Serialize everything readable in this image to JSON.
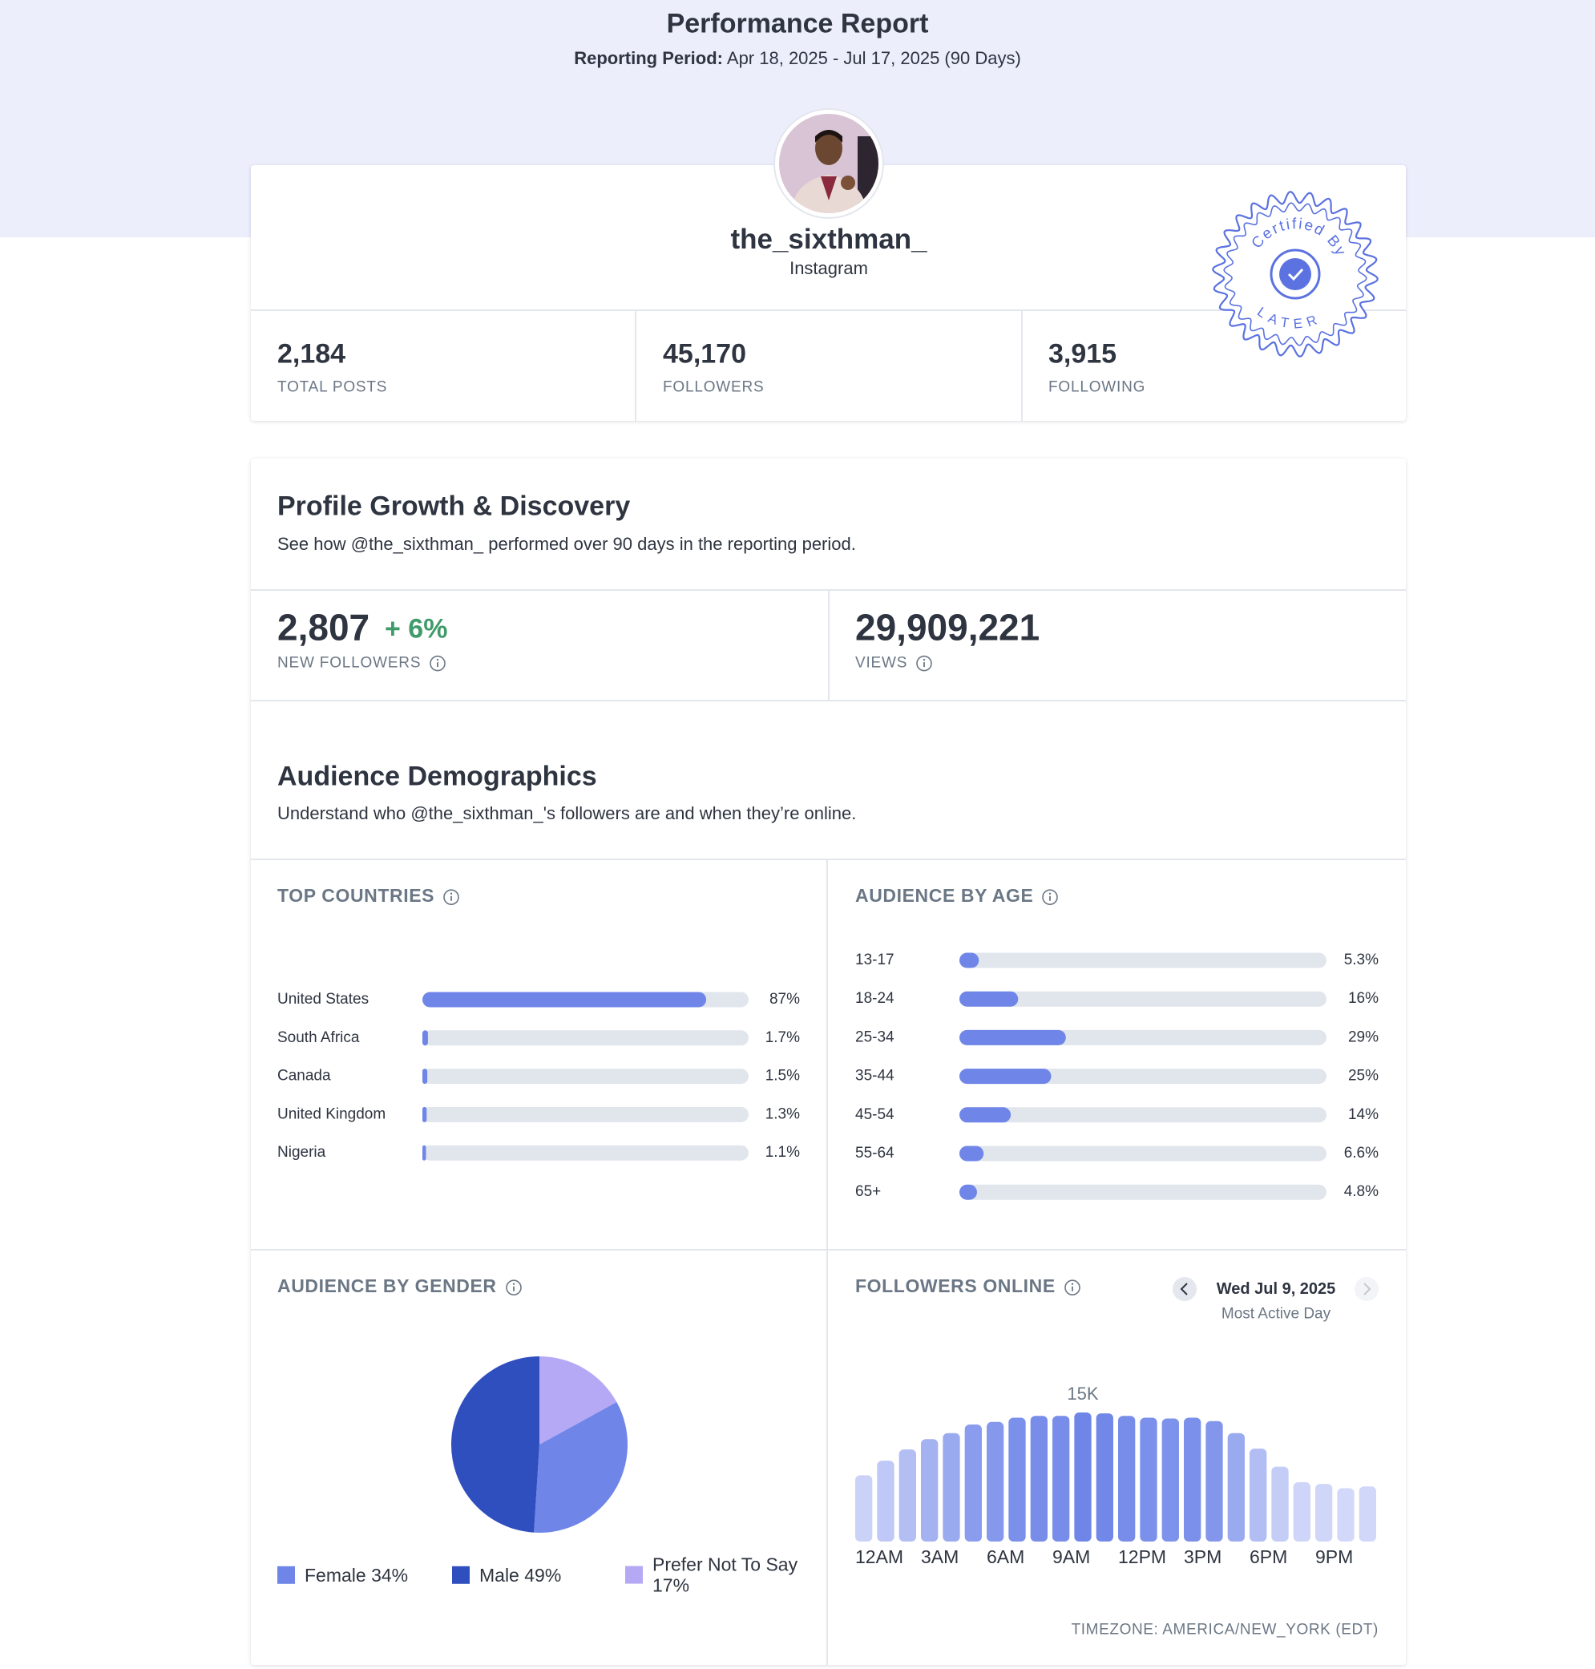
{
  "header": {
    "title": "Performance Report",
    "period_label": "Reporting Period:",
    "period": "Apr 18, 2025 - Jul 17, 2025 (90 Days)"
  },
  "profile": {
    "username": "the_sixthman_",
    "platform": "Instagram",
    "badge": {
      "top": "Certified By",
      "bottom": "LATER"
    }
  },
  "stats": [
    {
      "value": "2,184",
      "label": "TOTAL POSTS"
    },
    {
      "value": "45,170",
      "label": "FOLLOWERS"
    },
    {
      "value": "3,915",
      "label": "FOLLOWING"
    }
  ],
  "growth": {
    "title": "Profile Growth & Discovery",
    "subtitle": "See how @the_sixthman_ performed over 90 days in the reporting period.",
    "metrics": [
      {
        "value": "2,807",
        "change": "+ 6%",
        "label": "NEW FOLLOWERS"
      },
      {
        "value": "29,909,221",
        "label": "VIEWS"
      }
    ]
  },
  "demographics": {
    "title": "Audience Demographics",
    "subtitle": "Understand who @the_sixthman_'s followers are and when they’re online.",
    "countries": {
      "type": "bar",
      "title": "TOP COUNTRIES",
      "categories": [
        "United States",
        "South Africa",
        "Canada",
        "United Kingdom",
        "Nigeria"
      ],
      "values": [
        87,
        1.7,
        1.5,
        1.3,
        1.1
      ],
      "value_labels": [
        "87%",
        "1.7%",
        "1.5%",
        "1.3%",
        "1.1%"
      ],
      "xlim": [
        0,
        100
      ],
      "color": "#6f86e8",
      "track_color": "#e1e5ec"
    },
    "age": {
      "type": "bar",
      "title": "AUDIENCE BY AGE",
      "categories": [
        "13-17",
        "18-24",
        "25-34",
        "35-44",
        "45-54",
        "55-64",
        "65+"
      ],
      "values": [
        5.3,
        16,
        29,
        25,
        14,
        6.6,
        4.8
      ],
      "value_labels": [
        "5.3%",
        "16%",
        "29%",
        "25%",
        "14%",
        "6.6%",
        "4.8%"
      ],
      "xlim": [
        0,
        100
      ],
      "color": "#6f86e8",
      "track_color": "#e1e5ec"
    },
    "gender": {
      "type": "pie",
      "title": "AUDIENCE BY GENDER",
      "categories": [
        "Female",
        "Male",
        "Prefer Not To Say"
      ],
      "values": [
        34,
        49,
        17
      ],
      "value_labels": [
        "34%",
        "49%",
        "17%"
      ],
      "colors": [
        "#6f86e8",
        "#2f4fbf",
        "#b5a9f5"
      ]
    },
    "followers_online": {
      "type": "bar",
      "title": "FOLLOWERS ONLINE",
      "date": "Wed Jul 9, 2025",
      "date_note": "Most Active Day",
      "categories": [
        "12AM",
        null,
        null,
        "3AM",
        null,
        null,
        "6AM",
        null,
        null,
        "9AM",
        null,
        null,
        "12PM",
        null,
        null,
        "3PM",
        null,
        null,
        "6PM",
        null,
        null,
        "9PM",
        null,
        null
      ],
      "values": [
        7700,
        9400,
        10700,
        11900,
        12600,
        13600,
        13900,
        14400,
        14600,
        14600,
        15000,
        14900,
        14600,
        14400,
        14300,
        14400,
        14000,
        12600,
        10800,
        8700,
        6900,
        6700,
        6200,
        6400
      ],
      "value_labels": [
        null,
        null,
        null,
        null,
        null,
        null,
        null,
        null,
        null,
        null,
        "15K",
        null,
        null,
        null,
        null,
        null,
        null,
        null,
        null,
        null,
        null,
        null,
        null,
        null
      ],
      "ylim": [
        0,
        15000
      ],
      "color_low": "#d9defa",
      "color_high": "#6f86e8",
      "timezone": "TIMEZONE: AMERICA/NEW_YORK (EDT)"
    }
  }
}
